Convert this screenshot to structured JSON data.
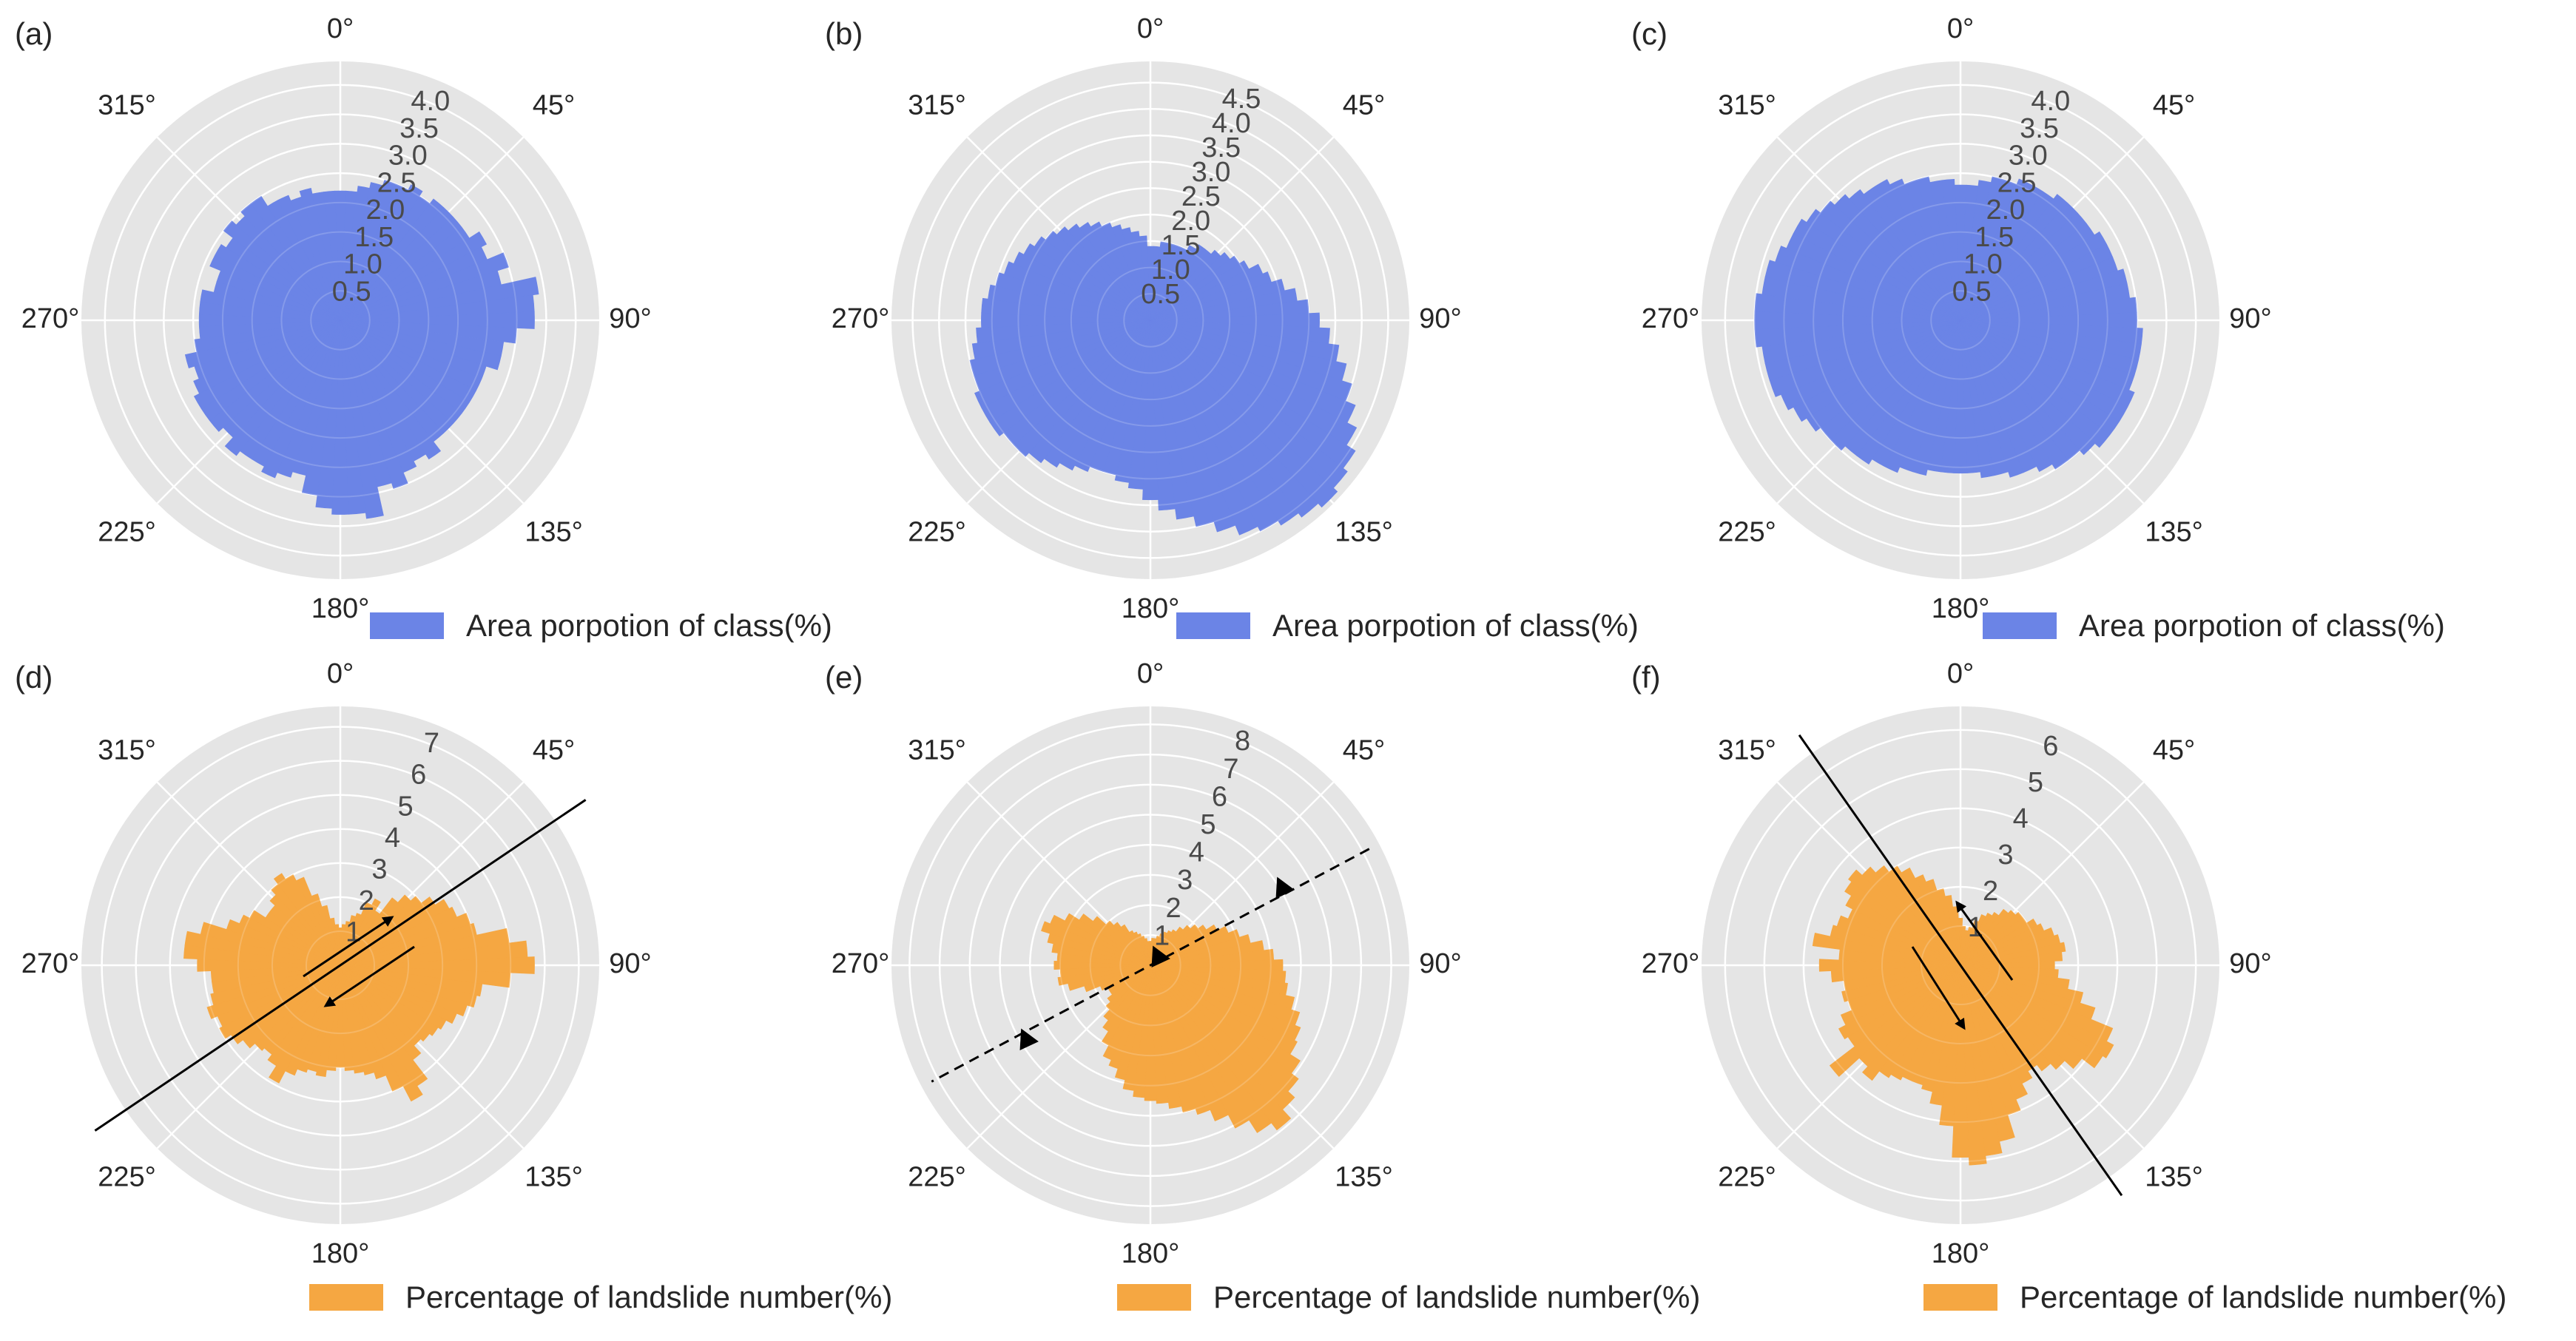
{
  "chart_data": [
    {
      "type": "polar-bar",
      "panel": "(a)",
      "theta_direction": "clockwise",
      "theta_zero": "N",
      "theta_ticks": [
        "0°",
        "45°",
        "90°",
        "135°",
        "180°",
        "225°",
        "270°",
        "315°"
      ],
      "r_ticks": [
        "0.5",
        "1.0",
        "1.5",
        "2.0",
        "2.5",
        "3.0",
        "3.5",
        "4.0"
      ],
      "rmax": 4.4,
      "color": "#6b84e6",
      "legend": "Area porpotion of class(%)",
      "legend_placement": "bottom",
      "grid": true,
      "values": [
        2.2,
        2.2,
        2.3,
        2.4,
        2.5,
        2.5,
        2.6,
        2.5,
        2.6,
        2.6,
        2.6,
        2.6,
        2.8,
        2.7,
        3.0,
        2.8,
        3.4,
        3.3,
        3.3,
        3.0,
        2.8,
        2.8,
        2.6,
        2.6,
        2.6,
        2.6,
        2.6,
        2.6,
        2.6,
        2.8,
        2.7,
        2.8,
        3.0,
        2.9,
        3.4,
        3.3,
        3.3,
        3.2,
        3.0,
        2.7,
        2.8,
        2.9,
        2.8,
        2.8,
        2.9,
        2.7,
        2.8,
        2.8,
        2.8,
        2.7,
        2.6,
        2.7,
        2.5,
        2.4,
        2.4,
        2.4,
        2.4,
        2.2,
        2.2,
        2.4,
        2.4,
        2.3,
        2.5,
        2.4,
        2.5,
        2.5,
        2.3,
        2.3,
        2.2,
        2.3,
        2.2,
        2.2
      ]
    },
    {
      "type": "polar-bar",
      "panel": "(b)",
      "theta_direction": "clockwise",
      "theta_zero": "N",
      "theta_ticks": [
        "0°",
        "45°",
        "90°",
        "135°",
        "180°",
        "225°",
        "270°",
        "315°"
      ],
      "r_ticks": [
        "0.5",
        "1.0",
        "1.5",
        "2.0",
        "2.5",
        "3.0",
        "3.5",
        "4.0",
        "4.5"
      ],
      "rmax": 4.9,
      "color": "#6b84e6",
      "legend": "Area porpotion of class(%)",
      "legend_placement": "bottom",
      "grid": true,
      "values": [
        1.4,
        1.4,
        1.5,
        1.5,
        1.5,
        1.5,
        1.6,
        1.7,
        1.7,
        1.8,
        1.9,
        2.0,
        2.1,
        2.3,
        2.4,
        2.6,
        2.8,
        3.0,
        3.2,
        3.4,
        3.6,
        3.8,
        4.0,
        4.2,
        4.4,
        4.6,
        4.7,
        4.8,
        4.7,
        4.6,
        4.5,
        4.4,
        4.2,
        4.0,
        3.8,
        3.6,
        3.4,
        3.2,
        3.1,
        3.0,
        3.0,
        3.1,
        3.2,
        3.3,
        3.4,
        3.5,
        3.5,
        3.6,
        3.6,
        3.6,
        3.5,
        3.5,
        3.4,
        3.3,
        3.2,
        3.2,
        3.1,
        3.0,
        2.9,
        2.8,
        2.7,
        2.6,
        2.5,
        2.4,
        2.3,
        2.2,
        2.1,
        2.0,
        1.9,
        1.8,
        1.7,
        1.6
      ]
    },
    {
      "type": "polar-bar",
      "panel": "(c)",
      "theta_direction": "clockwise",
      "theta_zero": "N",
      "theta_ticks": [
        "0°",
        "45°",
        "90°",
        "135°",
        "180°",
        "225°",
        "270°",
        "315°"
      ],
      "r_ticks": [
        "0.5",
        "1.0",
        "1.5",
        "2.0",
        "2.5",
        "3.0",
        "3.5",
        "4.0"
      ],
      "rmax": 4.4,
      "color": "#6b84e6",
      "legend": "Area porpotion of class(%)",
      "legend_placement": "bottom",
      "grid": true,
      "values": [
        2.3,
        2.3,
        2.4,
        2.5,
        2.5,
        2.6,
        2.6,
        2.6,
        2.7,
        2.7,
        2.7,
        2.7,
        2.8,
        2.8,
        2.8,
        2.9,
        2.9,
        3.0,
        3.0,
        3.1,
        3.1,
        3.1,
        3.1,
        3.2,
        3.2,
        3.2,
        3.2,
        3.1,
        3.0,
        3.0,
        2.9,
        2.8,
        2.8,
        2.7,
        2.7,
        2.6,
        2.6,
        2.6,
        2.6,
        2.7,
        2.7,
        2.8,
        2.8,
        2.9,
        2.9,
        3.0,
        3.0,
        3.1,
        3.2,
        3.3,
        3.4,
        3.4,
        3.4,
        3.5,
        3.5,
        3.5,
        3.4,
        3.4,
        3.3,
        3.2,
        3.2,
        3.1,
        3.0,
        2.9,
        2.8,
        2.7,
        2.7,
        2.6,
        2.5,
        2.5,
        2.4,
        2.4
      ]
    },
    {
      "type": "polar-bar",
      "panel": "(d)",
      "theta_direction": "clockwise",
      "theta_zero": "N",
      "theta_ticks": [
        "0°",
        "45°",
        "90°",
        "135°",
        "180°",
        "225°",
        "270°",
        "315°"
      ],
      "r_ticks": [
        "1",
        "2",
        "3",
        "4",
        "5",
        "6",
        "7"
      ],
      "rmax": 7.6,
      "color": "#f5a742",
      "legend": "Percentage of landslide number(%)",
      "legend_placement": "bottom",
      "grid": true,
      "values": [
        1.1,
        1.2,
        1.3,
        1.5,
        1.6,
        2.0,
        2.2,
        1.9,
        2.5,
        2.8,
        3.0,
        3.3,
        3.6,
        3.7,
        4.0,
        4.1,
        5.0,
        5.5,
        5.7,
        5.0,
        4.2,
        4.1,
        3.9,
        3.7,
        3.5,
        3.4,
        3.3,
        3.2,
        3.5,
        4.2,
        4.5,
        4.0,
        3.5,
        3.3,
        3.2,
        3.1,
        3.0,
        3.1,
        3.3,
        3.2,
        3.3,
        3.5,
        3.9,
        3.5,
        3.3,
        3.4,
        3.6,
        3.8,
        4.0,
        3.9,
        4.1,
        3.9,
        3.8,
        3.8,
        4.2,
        4.6,
        4.6,
        4.2,
        3.5,
        3.2,
        3.0,
        2.6,
        2.6,
        2.8,
        3.0,
        3.2,
        3.0,
        2.8,
        2.2,
        1.8,
        1.4,
        1.2
      ]
    },
    {
      "type": "polar-bar",
      "panel": "(e)",
      "theta_direction": "clockwise",
      "theta_zero": "N",
      "theta_ticks": [
        "0°",
        "45°",
        "90°",
        "135°",
        "180°",
        "225°",
        "270°",
        "315°"
      ],
      "r_ticks": [
        "1",
        "2",
        "3",
        "4",
        "5",
        "6",
        "7",
        "8"
      ],
      "rmax": 8.6,
      "color": "#f5a742",
      "legend": "Percentage of landslide number(%)",
      "legend_placement": "bottom",
      "grid": true,
      "values": [
        0.8,
        0.9,
        0.9,
        1.0,
        1.1,
        1.2,
        1.3,
        1.4,
        1.6,
        1.8,
        2.0,
        2.2,
        2.5,
        2.8,
        3.1,
        3.4,
        3.8,
        4.1,
        4.4,
        4.5,
        4.6,
        4.9,
        5.2,
        5.4,
        5.5,
        5.9,
        6.2,
        6.5,
        6.9,
        6.6,
        6.1,
        5.6,
        5.2,
        5.0,
        4.8,
        4.6,
        4.5,
        4.4,
        4.2,
        3.9,
        3.6,
        3.4,
        3.0,
        2.6,
        2.3,
        2.0,
        1.8,
        1.6,
        1.6,
        1.8,
        2.3,
        2.8,
        3.1,
        3.0,
        3.2,
        3.1,
        3.3,
        3.5,
        3.8,
        3.6,
        3.2,
        2.8,
        2.4,
        2.0,
        1.8,
        1.6,
        1.3,
        1.2,
        1.1,
        1.0,
        0.9,
        0.8
      ]
    },
    {
      "type": "polar-bar",
      "panel": "(f)",
      "theta_direction": "clockwise",
      "theta_zero": "N",
      "theta_ticks": [
        "0°",
        "45°",
        "90°",
        "135°",
        "180°",
        "225°",
        "270°",
        "315°"
      ],
      "r_ticks": [
        "1",
        "2",
        "3",
        "4",
        "5",
        "6"
      ],
      "rmax": 6.6,
      "color": "#f5a742",
      "legend": "Percentage of landslide number(%)",
      "legend_placement": "bottom",
      "grid": true,
      "values": [
        1.2,
        1.0,
        0.9,
        1.0,
        1.2,
        1.4,
        1.5,
        1.6,
        1.8,
        1.9,
        2.0,
        2.0,
        2.2,
        2.3,
        2.5,
        2.6,
        2.7,
        2.6,
        2.4,
        2.5,
        2.8,
        3.2,
        3.6,
        4.2,
        4.4,
        4.3,
        3.9,
        3.6,
        3.4,
        3.2,
        3.4,
        3.7,
        4.0,
        4.6,
        4.9,
        5.1,
        4.9,
        4.1,
        3.6,
        3.3,
        3.2,
        3.2,
        3.3,
        3.4,
        3.7,
        3.5,
        4.2,
        3.4,
        3.5,
        3.3,
        3.0,
        3.1,
        3.0,
        3.3,
        3.6,
        3.1,
        3.8,
        3.4,
        3.3,
        3.1,
        3.3,
        3.5,
        3.6,
        3.4,
        3.2,
        3.0,
        2.8,
        2.5,
        2.3,
        2.0,
        1.8,
        1.5
      ]
    }
  ],
  "annotations": {
    "d": {
      "fault": "solid",
      "fault_angle_deg": 55,
      "arrows": "two-sided-shear"
    },
    "e": {
      "fault": "dashed",
      "fault_angle_deg": 60,
      "arrows": "triangles"
    },
    "f": {
      "fault": "solid",
      "fault_angle_deg": 325,
      "arrows": "two-sided-shear"
    }
  }
}
